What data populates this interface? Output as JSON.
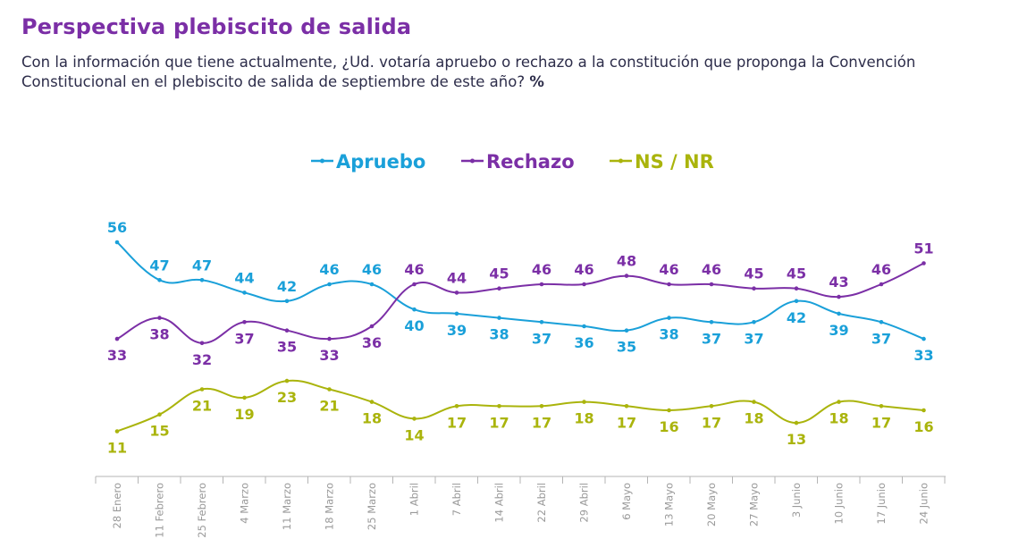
{
  "title": "Perspectiva plebiscito de salida",
  "subtitle": "Con la información que tiene actualmente, ¿Ud. votaría apruebo o rechazo a la constitución que proponga la Convención Constitucional en el plebiscito de salida de septiembre de este año?",
  "subtitle_unit": "%",
  "chart_data": {
    "type": "line",
    "categories": [
      "28 Enero",
      "11 Febrero",
      "25 Febrero",
      "4 Marzo",
      "11 Marzo",
      "18 Marzo",
      "25 Marzo",
      "1 Abril",
      "7 Abril",
      "14 Abril",
      "22 Abril",
      "29 Abril",
      "6 Mayo",
      "13 Mayo",
      "20 Mayo",
      "27 Mayo",
      "3 Junio",
      "10 Junio",
      "17 Junio",
      "24 Junio"
    ],
    "series": [
      {
        "name": "Apruebo",
        "color": "#1aa0d9",
        "values": [
          56,
          47,
          47,
          44,
          42,
          46,
          46,
          40,
          39,
          38,
          37,
          36,
          35,
          38,
          37,
          37,
          42,
          39,
          37,
          33
        ],
        "label_pos": [
          "above",
          "above",
          "above",
          "above",
          "above",
          "above",
          "above",
          "below",
          "below",
          "below",
          "below",
          "below",
          "below",
          "below",
          "below",
          "below",
          "below",
          "below",
          "below",
          "below"
        ]
      },
      {
        "name": "Rechazo",
        "color": "#7b2fa6",
        "values": [
          33,
          38,
          32,
          37,
          35,
          33,
          36,
          46,
          44,
          45,
          46,
          46,
          48,
          46,
          46,
          45,
          45,
          43,
          46,
          51
        ],
        "label_pos": [
          "below",
          "below",
          "below",
          "below",
          "below",
          "below",
          "below",
          "above",
          "above",
          "above",
          "above",
          "above",
          "above",
          "above",
          "above",
          "above",
          "above",
          "above",
          "above",
          "above"
        ]
      },
      {
        "name": "NS / NR",
        "color": "#aab40c",
        "values": [
          11,
          15,
          21,
          19,
          23,
          21,
          18,
          14,
          17,
          17,
          17,
          18,
          17,
          16,
          17,
          18,
          13,
          18,
          17,
          16
        ],
        "label_pos": [
          "below",
          "below",
          "below",
          "below",
          "below",
          "below",
          "below",
          "below",
          "below",
          "below",
          "below",
          "below",
          "below",
          "below",
          "below",
          "below",
          "below",
          "below",
          "below",
          "below"
        ]
      }
    ],
    "legend": "top-center",
    "grid": false
  }
}
